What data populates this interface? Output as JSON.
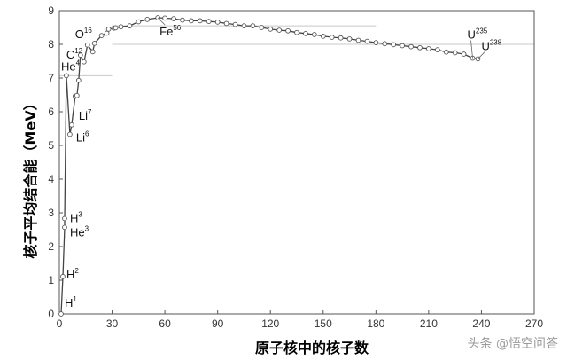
{
  "chart_data": {
    "type": "line",
    "title": "",
    "xlabel": "原子核中的核子数",
    "ylabel": "核子平均结合能（MeV）",
    "xlim": [
      0,
      270
    ],
    "ylim": [
      0,
      9
    ],
    "xticks": [
      0,
      30,
      60,
      90,
      120,
      150,
      180,
      210,
      240,
      270
    ],
    "yticks": [
      0,
      1,
      2,
      3,
      4,
      5,
      6,
      7,
      8,
      9
    ],
    "grid": false,
    "series": [
      {
        "x": [
          1,
          2,
          3,
          3,
          4,
          6,
          7,
          9,
          10,
          11,
          12,
          14,
          16,
          19,
          20,
          24,
          27,
          28,
          31,
          32,
          35,
          40,
          45,
          50,
          56,
          60,
          65,
          70,
          75,
          80,
          85,
          90,
          95,
          100,
          105,
          110,
          115,
          120,
          125,
          130,
          135,
          140,
          145,
          150,
          155,
          160,
          165,
          170,
          175,
          180,
          185,
          190,
          195,
          200,
          205,
          210,
          215,
          220,
          225,
          230,
          235,
          238
        ],
        "y": [
          0,
          1.11,
          2.57,
          2.83,
          7.07,
          5.33,
          5.61,
          6.46,
          6.48,
          6.93,
          7.68,
          7.48,
          7.98,
          7.78,
          8.03,
          8.26,
          8.33,
          8.45,
          8.48,
          8.49,
          8.52,
          8.55,
          8.67,
          8.74,
          8.79,
          8.78,
          8.76,
          8.72,
          8.7,
          8.7,
          8.68,
          8.66,
          8.62,
          8.59,
          8.55,
          8.55,
          8.5,
          8.45,
          8.42,
          8.4,
          8.35,
          8.32,
          8.29,
          8.24,
          8.21,
          8.19,
          8.16,
          8.12,
          8.09,
          8.05,
          8.02,
          7.99,
          7.96,
          7.93,
          7.9,
          7.87,
          7.84,
          7.77,
          7.75,
          7.71,
          7.59,
          7.57
        ]
      }
    ],
    "annotations": [
      {
        "symbol": "H",
        "mass": "1",
        "x": 1,
        "y": 0
      },
      {
        "symbol": "H",
        "mass": "2",
        "x": 2,
        "y": 1.11
      },
      {
        "symbol": "H",
        "mass": "3",
        "x": 3,
        "y": 2.83
      },
      {
        "symbol": "He",
        "mass": "3",
        "x": 3,
        "y": 2.57
      },
      {
        "symbol": "He",
        "mass": "4",
        "x": 4,
        "y": 7.07
      },
      {
        "symbol": "Li",
        "mass": "7",
        "x": 7,
        "y": 5.61
      },
      {
        "symbol": "Li",
        "mass": "6",
        "x": 6,
        "y": 5.33
      },
      {
        "symbol": "C",
        "mass": "12",
        "x": 12,
        "y": 7.68
      },
      {
        "symbol": "O",
        "mass": "16",
        "x": 16,
        "y": 7.98
      },
      {
        "symbol": "Fe",
        "mass": "56",
        "x": 56,
        "y": 8.79
      },
      {
        "symbol": "U",
        "mass": "235",
        "x": 235,
        "y": 7.59
      },
      {
        "symbol": "U",
        "mass": "238",
        "x": 238,
        "y": 7.57
      }
    ],
    "reference_lines": [
      7.07,
      8.55,
      8.0
    ]
  },
  "watermark": "头条 @悟空问答"
}
